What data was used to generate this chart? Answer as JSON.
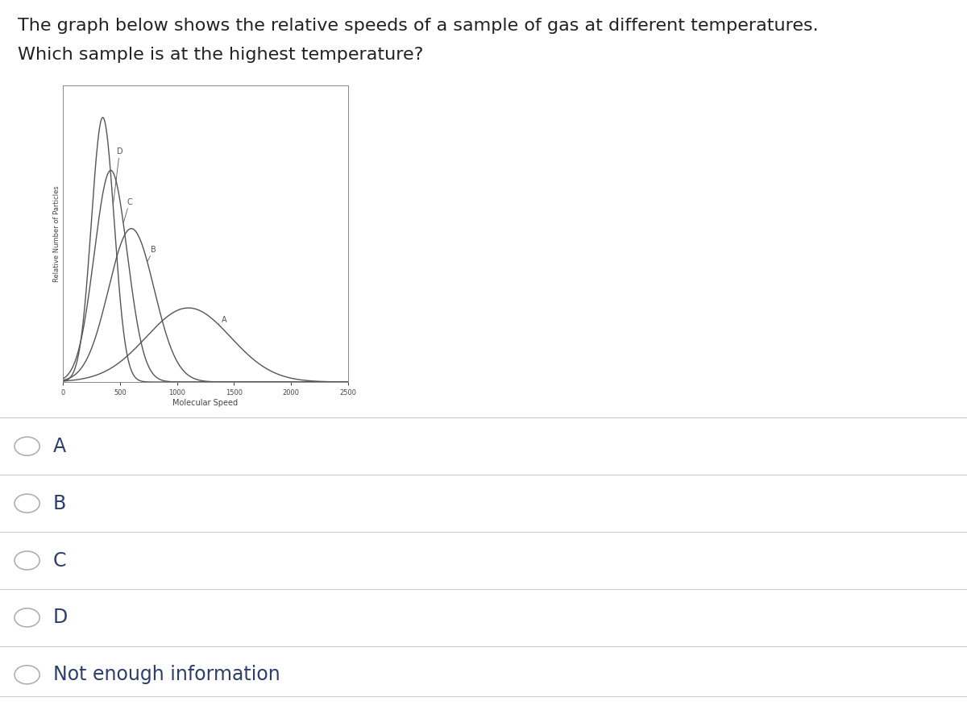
{
  "title_line1": "The graph below shows the relative speeds of a sample of gas at different temperatures.",
  "title_line2": "Which sample is at the highest temperature?",
  "xlabel": "Molecular Speed",
  "ylabel": "Relative Number of Particles",
  "xlim": [
    0,
    2500
  ],
  "xticks": [
    0,
    500,
    1000,
    1500,
    2000,
    2500
  ],
  "curves": {
    "D": {
      "peak": 350,
      "sigma": 100,
      "amplitude": 1.0
    },
    "C": {
      "peak": 420,
      "sigma": 145,
      "amplitude": 0.8
    },
    "B": {
      "peak": 600,
      "sigma": 200,
      "amplitude": 0.58
    },
    "A": {
      "peak": 1100,
      "sigma": 370,
      "amplitude": 0.28
    }
  },
  "curve_label_positions": {
    "D": [
      440,
      0.87
    ],
    "C": [
      530,
      0.68
    ],
    "B": [
      740,
      0.5
    ],
    "A": [
      1360,
      0.235
    ]
  },
  "options": [
    "A",
    "B",
    "C",
    "D",
    "Not enough information"
  ],
  "bg_color": "#ffffff",
  "text_color": "#2c3e6b",
  "option_text_color": "#2c3e6b",
  "curve_color": "#555555",
  "title_fontsize": 16,
  "option_fontsize": 17
}
